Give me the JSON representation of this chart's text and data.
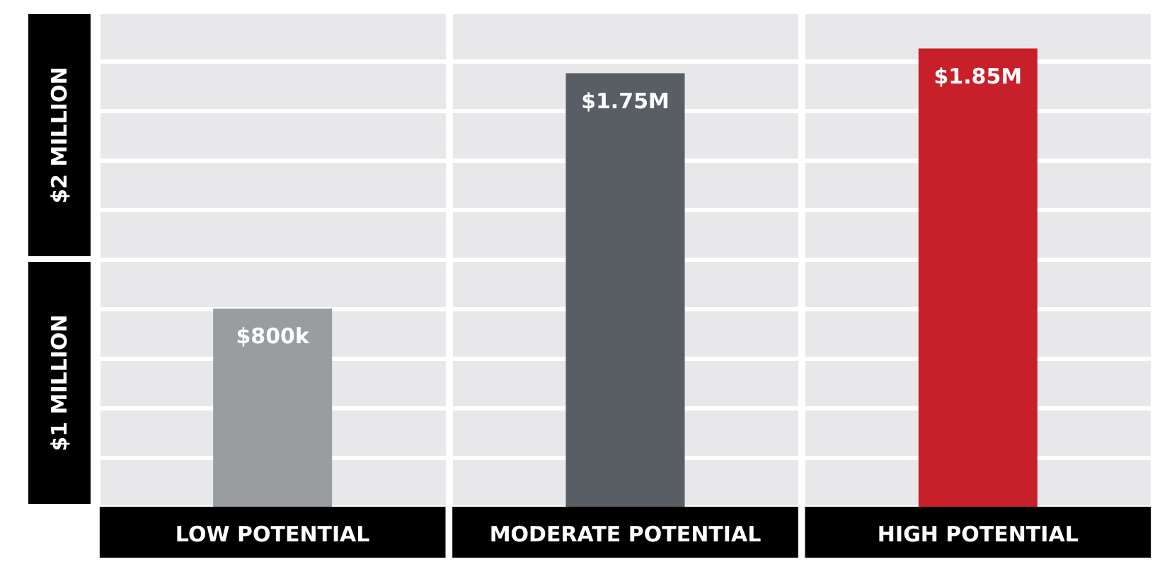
{
  "chart_data": {
    "type": "bar",
    "categories": [
      "LOW POTENTIAL",
      "MODERATE POTENTIAL",
      "HIGH POTENTIAL"
    ],
    "values": [
      800000,
      1750000,
      1850000
    ],
    "colors": [
      "#9a9da0",
      "#585e64",
      "#c8202a"
    ],
    "value_labels": [
      "$800k",
      "$1.75M",
      "$1.85M"
    ],
    "ylim": [
      0,
      2000000
    ],
    "yticks": [
      {
        "value": 0,
        "label": null
      },
      {
        "value": 200000,
        "label": null
      },
      {
        "value": 400000,
        "label": null
      },
      {
        "value": 600000,
        "label": null
      },
      {
        "value": 800000,
        "label": null
      },
      {
        "value": 1000000,
        "label": null
      },
      {
        "value": 1200000,
        "label": null
      },
      {
        "value": 1400000,
        "label": null
      },
      {
        "value": 1600000,
        "label": null
      },
      {
        "value": 1800000,
        "label": null
      },
      {
        "value": 2000000,
        "label": null
      }
    ],
    "annotations": [
      "$1 MILLION",
      "$2 MILLION"
    ],
    "tick_labels": "x",
    "grid": "y"
  }
}
